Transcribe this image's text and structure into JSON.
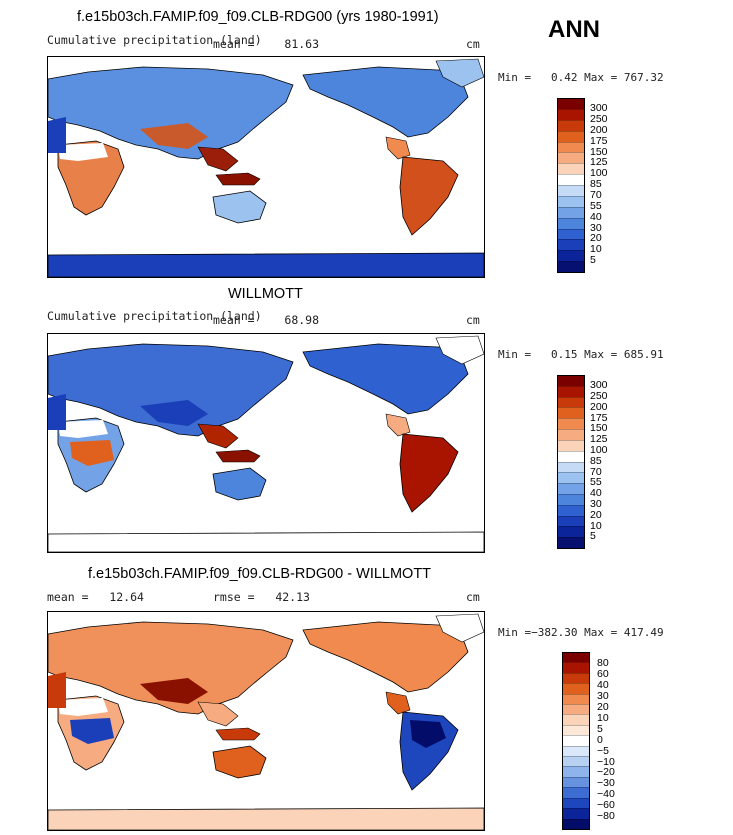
{
  "season": "ANN",
  "colors": {
    "precip_scale": [
      "#7a0000",
      "#a81400",
      "#c83a0a",
      "#e0601e",
      "#f08a4e",
      "#f6ac80",
      "#fbd3b8",
      "#ffffff",
      "#c6dcf6",
      "#9cc2f0",
      "#73a3e6",
      "#4d84dc",
      "#2f62d0",
      "#1a3fb8",
      "#0b249a",
      "#051070"
    ],
    "diff_scale": [
      "#7a0000",
      "#a81400",
      "#c83a0a",
      "#e0601e",
      "#f08a4e",
      "#f6ac80",
      "#fbd3b8",
      "#fde8d8",
      "#ffffff",
      "#dbe8fa",
      "#b8d1f3",
      "#8fb4ec",
      "#6692e0",
      "#3d6cd2",
      "#1f47bd",
      "#0b249a",
      "#040c6a"
    ]
  },
  "panels": [
    {
      "title": "f.e15b03ch.FAMIP.f09_f09.CLB-RDG00 (yrs 1980-1991)",
      "left_label": "Cumulative precipitation (land)",
      "mean_label": "mean",
      "mean_value": "81.63",
      "units": "cm",
      "min_label": "Min",
      "min_value": "0.42",
      "max_label": "Max",
      "max_value": "767.32",
      "ticks": [
        "300",
        "250",
        "200",
        "175",
        "150",
        "125",
        "100",
        "85",
        "70",
        "55",
        "40",
        "30",
        "20",
        "10",
        "5"
      ]
    },
    {
      "title": "WILLMOTT",
      "left_label": "Cumulative precipitation (land)",
      "mean_label": "mean",
      "mean_value": "68.98",
      "units": "cm",
      "min_label": "Min",
      "min_value": "0.15",
      "max_label": "Max",
      "max_value": "685.91",
      "ticks": [
        "300",
        "250",
        "200",
        "175",
        "150",
        "125",
        "100",
        "85",
        "70",
        "55",
        "40",
        "30",
        "20",
        "10",
        "5"
      ]
    },
    {
      "title": "f.e15b03ch.FAMIP.f09_f09.CLB-RDG00 - WILLMOTT",
      "mean_label": "mean",
      "mean_value": "12.64",
      "rmse_label": "rmse",
      "rmse_value": "42.13",
      "units": "cm",
      "min_label": "Min",
      "min_value": "−382.30",
      "max_label": "Max",
      "max_value": "417.49",
      "ticks": [
        "80",
        "60",
        "40",
        "30",
        "20",
        "10",
        "5",
        "0",
        "−5",
        "−10",
        "−20",
        "−30",
        "−40",
        "−60",
        "−80"
      ]
    }
  ]
}
